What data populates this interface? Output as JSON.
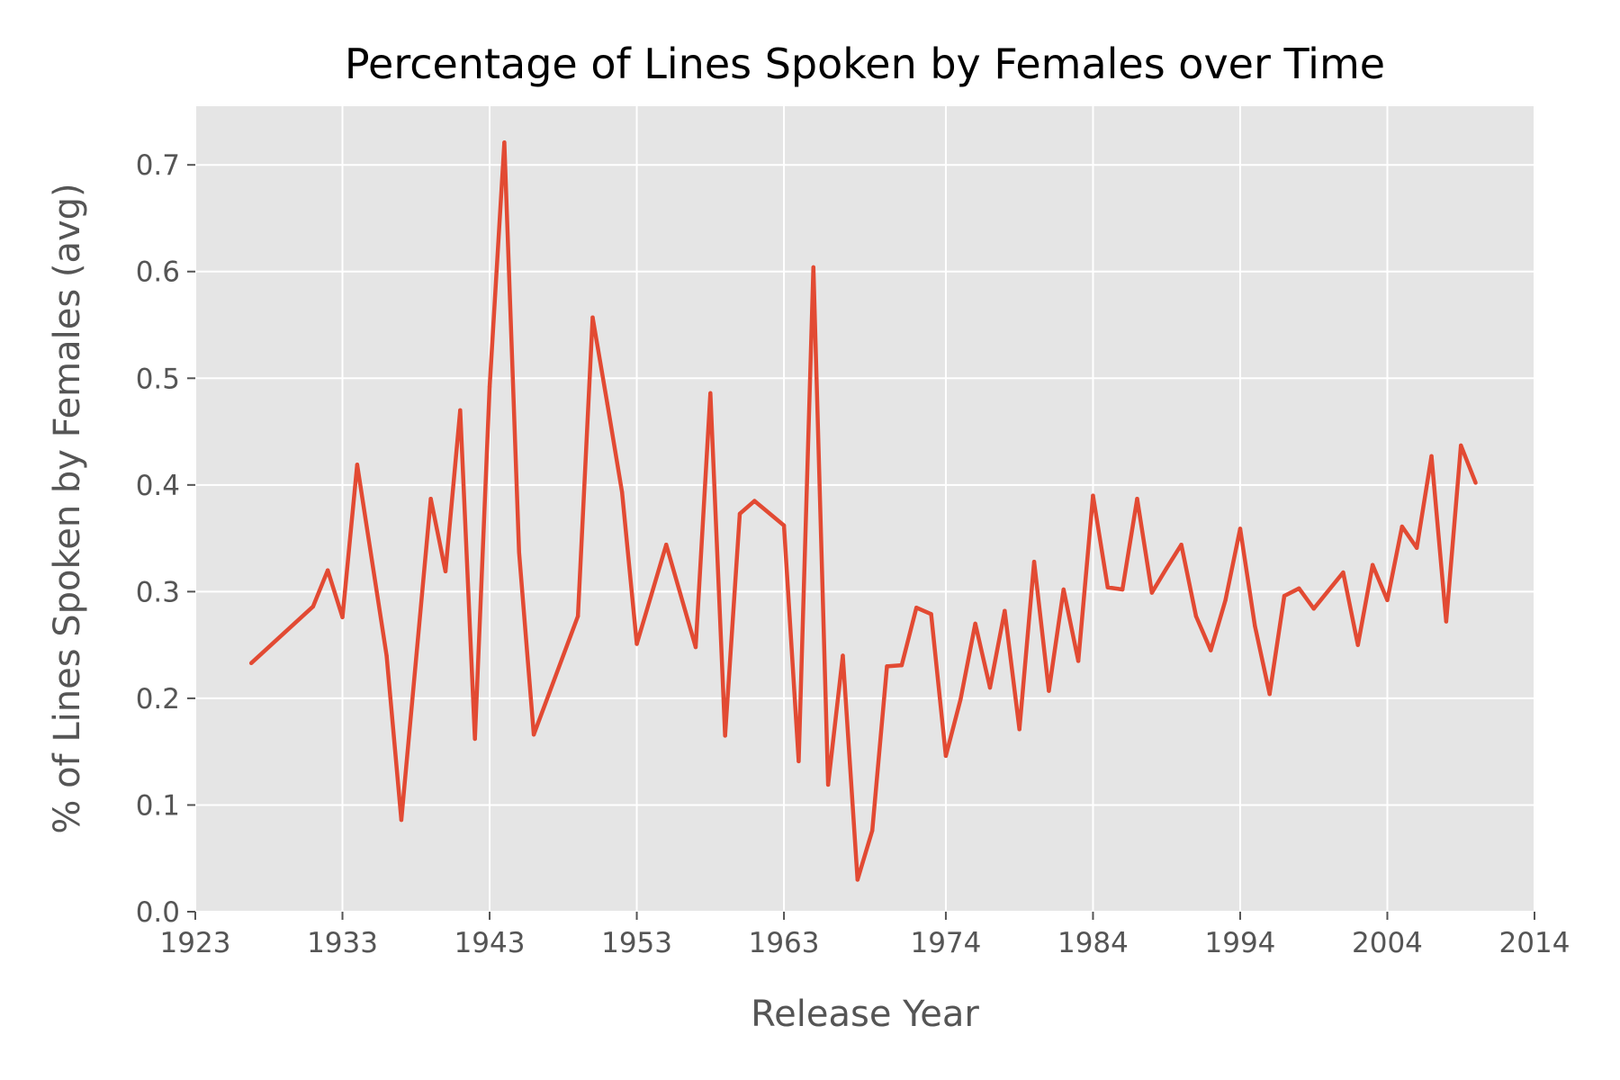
{
  "chart_data": {
    "type": "line",
    "title": "Percentage of Lines Spoken by Females over Time",
    "xlabel": "Release Year",
    "ylabel": "% of Lines Spoken by Females (avg)",
    "xlim": [
      1923,
      2014
    ],
    "ylim": [
      0.0,
      0.755
    ],
    "x_ticks": [
      {
        "value": 1923,
        "label": "1923"
      },
      {
        "value": 1933,
        "label": "1933"
      },
      {
        "value": 1943,
        "label": "1943"
      },
      {
        "value": 1953,
        "label": "1953"
      },
      {
        "value": 1963,
        "label": "1963"
      },
      {
        "value": 1974,
        "label": "1974"
      },
      {
        "value": 1984,
        "label": "1984"
      },
      {
        "value": 1994,
        "label": "1994"
      },
      {
        "value": 2004,
        "label": "2004"
      },
      {
        "value": 2014,
        "label": "2014"
      }
    ],
    "y_ticks": [
      {
        "value": 0.0,
        "label": "0.0"
      },
      {
        "value": 0.1,
        "label": "0.1"
      },
      {
        "value": 0.2,
        "label": "0.2"
      },
      {
        "value": 0.3,
        "label": "0.3"
      },
      {
        "value": 0.4,
        "label": "0.4"
      },
      {
        "value": 0.5,
        "label": "0.5"
      },
      {
        "value": 0.6,
        "label": "0.6"
      },
      {
        "value": 0.7,
        "label": "0.7"
      }
    ],
    "grid": true,
    "legend": "none",
    "colors": {
      "line": "#e24a33",
      "plot_background": "#e5e5e5",
      "grid": "#ffffff",
      "tick": "#555555"
    },
    "series": [
      {
        "x": [
          1926.8,
          1931.0,
          1932.0,
          1933.0,
          1934.0,
          1936.0,
          1937.0,
          1939.0,
          1940.0,
          1941.0,
          1942.0,
          1943.0,
          1944.0,
          1945.0,
          1946.0,
          1949.0,
          1950.0,
          1951.0,
          1952.0,
          1953.0,
          1955.0,
          1957.0,
          1958.0,
          1959.0,
          1960.0,
          1961.0,
          1963.0,
          1964.0,
          1965.0,
          1966.0,
          1967.0,
          1968.0,
          1969.0,
          1970.0,
          1971.0,
          1972.0,
          1973.0,
          1974.0,
          1975.0,
          1976.0,
          1977.0,
          1978.0,
          1979.0,
          1980.0,
          1981.0,
          1982.0,
          1983.0,
          1984.0,
          1985.0,
          1986.0,
          1987.0,
          1988.0,
          1989.0,
          1990.0,
          1991.0,
          1992.0,
          1993.0,
          1994.0,
          1995.0,
          1996.0,
          1997.0,
          1998.0,
          1999.0,
          2001.0,
          2002.0,
          2003.0,
          2004.0,
          2005.0,
          2006.0,
          2007.0,
          2008.0,
          2009.0,
          2010.0
        ],
        "values": [
          0.233,
          0.286,
          0.32,
          0.276,
          0.419,
          0.24,
          0.086,
          0.387,
          0.319,
          0.47,
          0.162,
          0.492,
          0.721,
          0.337,
          0.166,
          0.277,
          0.557,
          0.476,
          0.393,
          0.251,
          0.344,
          0.248,
          0.486,
          0.165,
          0.373,
          0.385,
          0.362,
          0.141,
          0.604,
          0.119,
          0.24,
          0.03,
          0.076,
          0.23,
          0.231,
          0.285,
          0.279,
          0.146,
          0.199,
          0.27,
          0.21,
          0.282,
          0.171,
          0.328,
          0.207,
          0.302,
          0.235,
          0.39,
          0.304,
          0.302,
          0.387,
          0.299,
          0.322,
          0.344,
          0.277,
          0.245,
          0.292,
          0.359,
          0.268,
          0.204,
          0.296,
          0.303,
          0.284,
          0.318,
          0.25,
          0.325,
          0.292,
          0.361,
          0.341,
          0.427,
          0.272,
          0.437,
          0.402
        ]
      }
    ]
  }
}
